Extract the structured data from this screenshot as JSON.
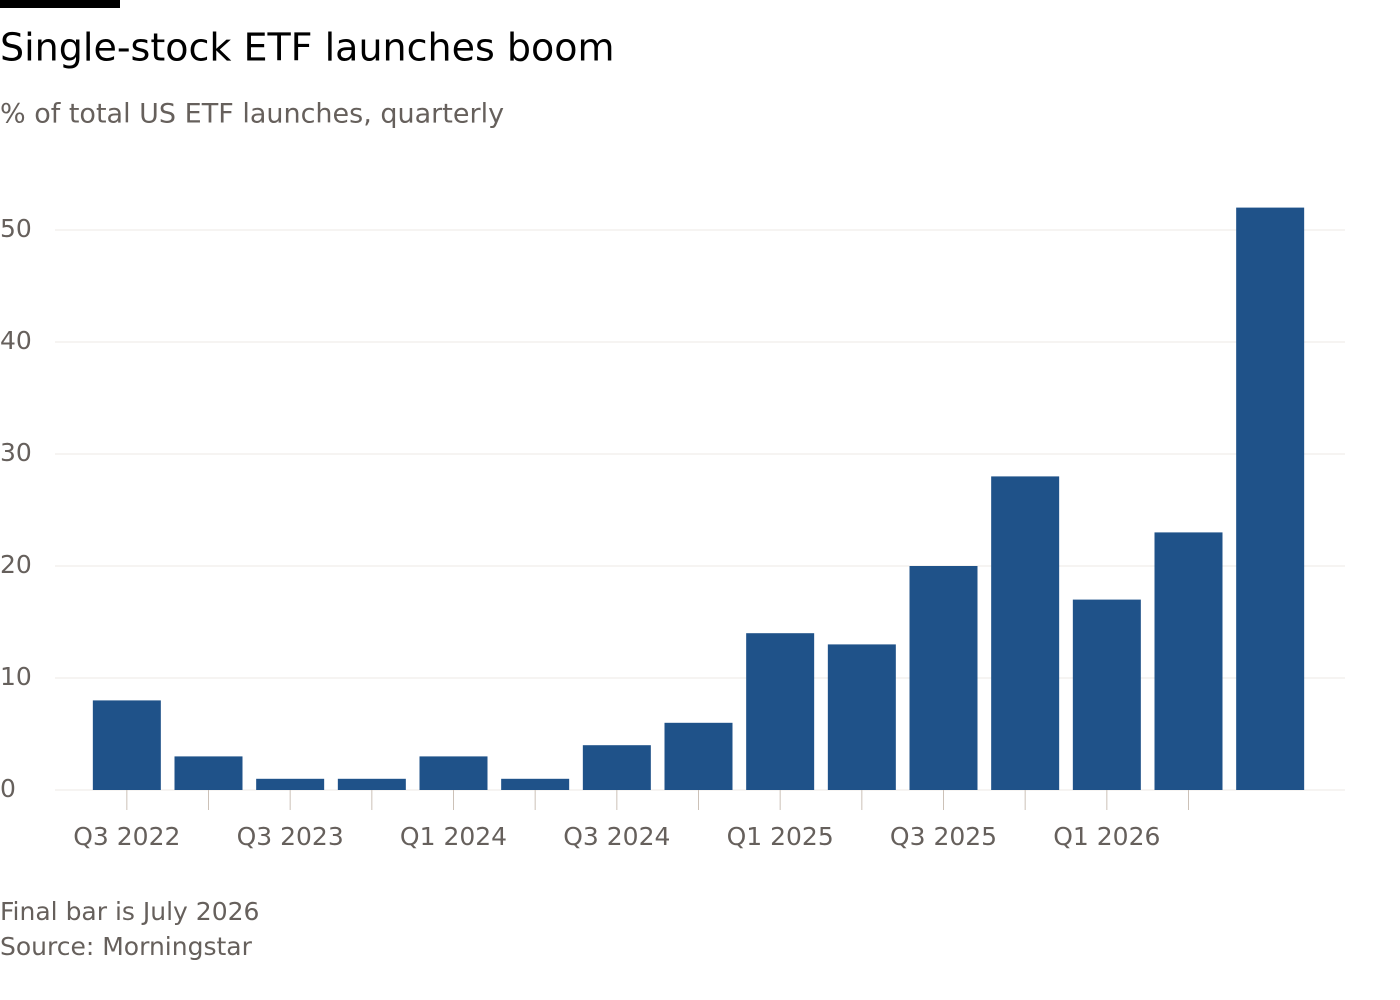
{
  "chart_data": {
    "type": "bar",
    "title": "Single-stock ETF launches boom",
    "subtitle": "% of total US ETF launches, quarterly",
    "categories": [
      "Q3 2022",
      null,
      "Q3 2023",
      null,
      "Q1 2024",
      null,
      "Q3 2024",
      null,
      "Q1 2025",
      null,
      "Q3 2025",
      null,
      "Q1 2026",
      null,
      null
    ],
    "values": [
      8,
      3,
      1,
      1,
      3,
      1,
      4,
      6,
      14,
      13,
      20,
      28,
      17,
      23,
      52
    ],
    "color": "#1f5289",
    "ylim": [
      0,
      55
    ],
    "yticks": [
      0,
      10,
      20,
      30,
      40,
      50
    ],
    "grid": true,
    "notes": [
      "Final bar is July 2026",
      "Source: Morningstar"
    ]
  }
}
